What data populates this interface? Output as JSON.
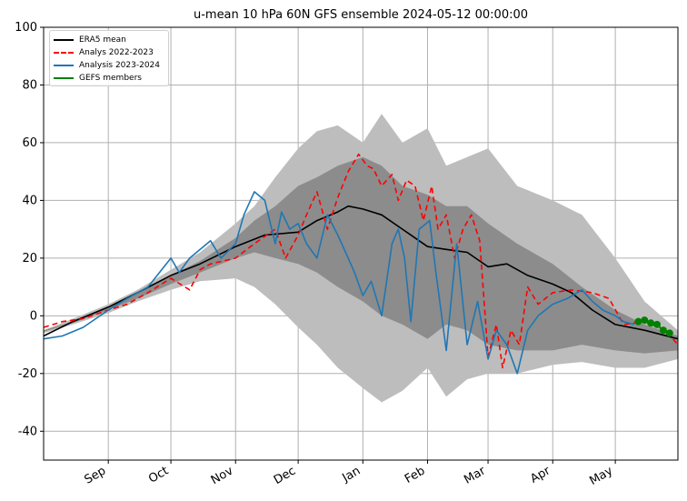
{
  "chart_data": {
    "type": "line",
    "title": "u-mean 10 hPa 60N GFS ensemble 2024-05-12 00:00:00",
    "xlabel": "",
    "ylabel": "",
    "x_range": [
      "2023-08-01",
      "2024-05-31"
    ],
    "ylim": [
      -50,
      100
    ],
    "yticks": [
      -40,
      -20,
      0,
      20,
      40,
      60,
      80,
      100
    ],
    "xticks": [
      {
        "date": "2023-09-01",
        "label": "Sep"
      },
      {
        "date": "2023-10-01",
        "label": "Oct"
      },
      {
        "date": "2023-11-01",
        "label": "Nov"
      },
      {
        "date": "2023-12-01",
        "label": "Dec"
      },
      {
        "date": "2024-01-01",
        "label": "Jan"
      },
      {
        "date": "2024-02-01",
        "label": "Feb"
      },
      {
        "date": "2024-03-01",
        "label": "Mar"
      },
      {
        "date": "2024-04-01",
        "label": "Apr"
      },
      {
        "date": "2024-05-01",
        "label": "May"
      }
    ],
    "grid": true,
    "legend_position": "top-left",
    "bands": [
      {
        "label": "",
        "color": "#bdbdbd",
        "x": [
          "2023-08-01",
          "2023-08-15",
          "2023-09-01",
          "2023-09-15",
          "2023-10-01",
          "2023-10-15",
          "2023-11-01",
          "2023-11-10",
          "2023-11-20",
          "2023-12-01",
          "2023-12-10",
          "2023-12-20",
          "2024-01-01",
          "2024-01-10",
          "2024-01-20",
          "2024-02-01",
          "2024-02-10",
          "2024-02-20",
          "2024-03-01",
          "2024-03-15",
          "2024-04-01",
          "2024-04-15",
          "2024-05-01",
          "2024-05-15",
          "2024-05-31"
        ],
        "upper": [
          -5,
          -1,
          4,
          9,
          16,
          22,
          32,
          38,
          48,
          58,
          64,
          66,
          60,
          70,
          60,
          65,
          52,
          55,
          58,
          45,
          40,
          35,
          20,
          5,
          -5
        ],
        "lower": [
          -6,
          -3,
          1,
          5,
          9,
          12,
          13,
          10,
          4,
          -4,
          -10,
          -18,
          -25,
          -30,
          -26,
          -18,
          -28,
          -22,
          -20,
          -20,
          -17,
          -16,
          -18,
          -18,
          -15
        ]
      },
      {
        "label": "",
        "color": "#8c8c8c",
        "x": [
          "2023-08-01",
          "2023-08-15",
          "2023-09-01",
          "2023-09-15",
          "2023-10-01",
          "2023-10-15",
          "2023-11-01",
          "2023-11-10",
          "2023-11-20",
          "2023-12-01",
          "2023-12-10",
          "2023-12-20",
          "2024-01-01",
          "2024-01-10",
          "2024-01-20",
          "2024-02-01",
          "2024-02-10",
          "2024-02-20",
          "2024-03-01",
          "2024-03-15",
          "2024-04-01",
          "2024-04-15",
          "2024-05-01",
          "2024-05-15",
          "2024-05-31"
        ],
        "upper": [
          -5,
          -2,
          3,
          8,
          14,
          19,
          27,
          33,
          38,
          45,
          48,
          52,
          55,
          52,
          45,
          42,
          38,
          38,
          32,
          25,
          18,
          10,
          2,
          -3,
          -7
        ],
        "lower": [
          -5.5,
          -2.5,
          2,
          6,
          11,
          15,
          20,
          22,
          20,
          18,
          15,
          10,
          5,
          0,
          -3,
          -8,
          -3,
          -5,
          -10,
          -12,
          -12,
          -10,
          -12,
          -13,
          -12
        ]
      }
    ],
    "series": [
      {
        "name": "ERA5 mean",
        "color": "#000000",
        "dash": "",
        "x": [
          "2023-08-01",
          "2023-08-15",
          "2023-09-01",
          "2023-09-15",
          "2023-10-01",
          "2023-10-15",
          "2023-11-01",
          "2023-11-15",
          "2023-12-01",
          "2023-12-10",
          "2023-12-20",
          "2023-12-25",
          "2024-01-01",
          "2024-01-10",
          "2024-01-20",
          "2024-02-01",
          "2024-02-10",
          "2024-02-20",
          "2024-03-01",
          "2024-03-10",
          "2024-03-20",
          "2024-04-01",
          "2024-04-10",
          "2024-04-20",
          "2024-05-01",
          "2024-05-15",
          "2024-05-31"
        ],
        "y": [
          -7,
          -2,
          3,
          8,
          14,
          18,
          24,
          28,
          29,
          33,
          36,
          38,
          37,
          35,
          30,
          24,
          23,
          22,
          17,
          18,
          14,
          11,
          8,
          2,
          -3,
          -5,
          -8
        ]
      },
      {
        "name": "Analys 2022-2023",
        "color": "#ff0000",
        "dash": "6,4",
        "x": [
          "2023-08-01",
          "2023-08-10",
          "2023-08-20",
          "2023-09-01",
          "2023-09-10",
          "2023-09-20",
          "2023-10-01",
          "2023-10-10",
          "2023-10-15",
          "2023-10-20",
          "2023-11-01",
          "2023-11-10",
          "2023-11-20",
          "2023-11-25",
          "2023-12-01",
          "2023-12-05",
          "2023-12-10",
          "2023-12-15",
          "2023-12-20",
          "2023-12-25",
          "2023-12-30",
          "2024-01-03",
          "2024-01-06",
          "2024-01-10",
          "2024-01-15",
          "2024-01-18",
          "2024-01-22",
          "2024-01-26",
          "2024-01-30",
          "2024-02-03",
          "2024-02-06",
          "2024-02-10",
          "2024-02-14",
          "2024-02-18",
          "2024-02-22",
          "2024-02-26",
          "2024-03-01",
          "2024-03-05",
          "2024-03-08",
          "2024-03-12",
          "2024-03-16",
          "2024-03-20",
          "2024-03-25",
          "2024-04-01",
          "2024-04-10",
          "2024-04-20",
          "2024-04-28",
          "2024-05-05",
          "2024-05-15",
          "2024-05-25",
          "2024-05-31"
        ],
        "y": [
          -4,
          -2,
          -1,
          2,
          4,
          8,
          13,
          9,
          16,
          18,
          20,
          25,
          30,
          20,
          28,
          35,
          43,
          30,
          41,
          50,
          56,
          52,
          51,
          45,
          49,
          40,
          47,
          45,
          33,
          45,
          30,
          35,
          20,
          30,
          35,
          26,
          -14,
          -3,
          -18,
          -5,
          -10,
          10,
          4,
          8,
          9,
          8,
          6,
          -3,
          -2,
          -5,
          -10
        ]
      },
      {
        "name": "Analysis 2023-2024",
        "color": "#1f77b4",
        "dash": "",
        "x": [
          "2023-08-01",
          "2023-08-10",
          "2023-08-20",
          "2023-09-01",
          "2023-09-10",
          "2023-09-20",
          "2023-10-01",
          "2023-10-05",
          "2023-10-10",
          "2023-10-20",
          "2023-10-25",
          "2023-11-01",
          "2023-11-05",
          "2023-11-10",
          "2023-11-15",
          "2023-11-20",
          "2023-11-23",
          "2023-11-27",
          "2023-12-01",
          "2023-12-05",
          "2023-12-10",
          "2023-12-15",
          "2023-12-20",
          "2023-12-25",
          "2023-12-28",
          "2024-01-01",
          "2024-01-05",
          "2024-01-10",
          "2024-01-15",
          "2024-01-18",
          "2024-01-21",
          "2024-01-24",
          "2024-01-28",
          "2024-02-02",
          "2024-02-05",
          "2024-02-10",
          "2024-02-15",
          "2024-02-20",
          "2024-02-25",
          "2024-03-01",
          "2024-03-05",
          "2024-03-10",
          "2024-03-15",
          "2024-03-20",
          "2024-03-25",
          "2024-04-01",
          "2024-04-08",
          "2024-04-15",
          "2024-04-20",
          "2024-04-25",
          "2024-05-01",
          "2024-05-05",
          "2024-05-10"
        ],
        "y": [
          -8,
          -7,
          -4,
          2,
          6,
          10,
          20,
          15,
          20,
          26,
          20,
          25,
          35,
          43,
          40,
          25,
          36,
          30,
          32,
          25,
          20,
          35,
          28,
          20,
          15,
          7,
          12,
          0,
          25,
          30,
          20,
          -2,
          30,
          33,
          15,
          -12,
          25,
          -10,
          5,
          -15,
          -5,
          -10,
          -20,
          -5,
          0,
          4,
          6,
          9,
          5,
          2,
          0,
          -2,
          -3
        ]
      },
      {
        "name": "GEFS members",
        "color": "#008000",
        "dash": "",
        "x": [
          "2024-05-12",
          "2024-05-15",
          "2024-05-18",
          "2024-05-21",
          "2024-05-24",
          "2024-05-27"
        ],
        "y": [
          -2,
          -1.5,
          -2.5,
          -3,
          -5,
          -6
        ]
      }
    ]
  }
}
